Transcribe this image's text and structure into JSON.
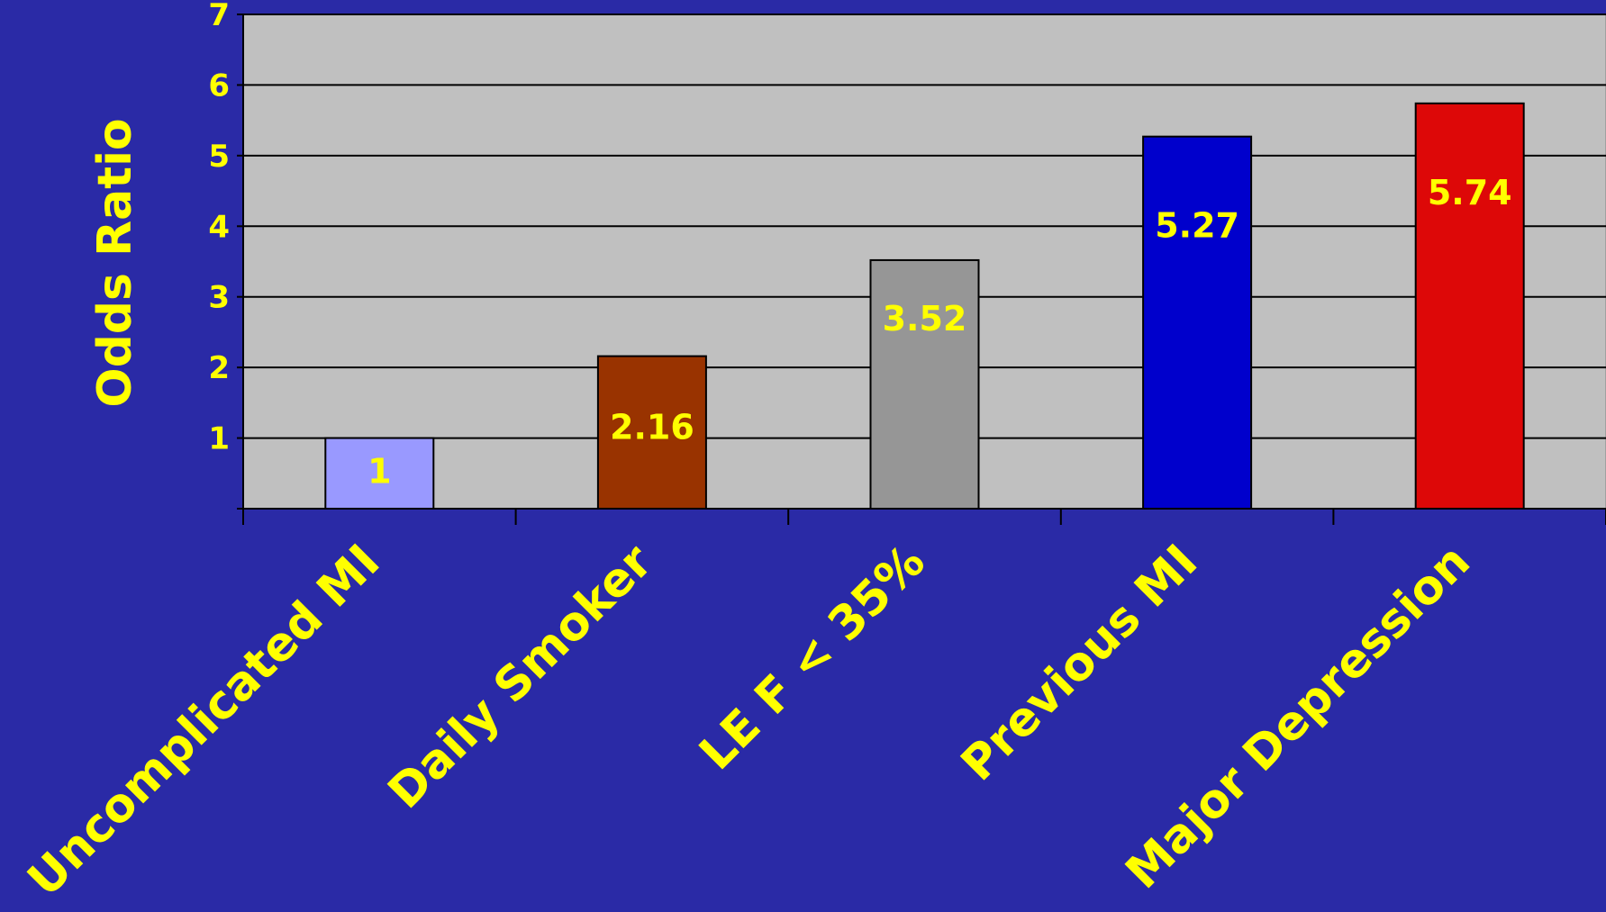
{
  "chart_data": {
    "type": "bar",
    "title": "",
    "xlabel": "",
    "ylabel": "Odds Ratio",
    "ylim": [
      0,
      7
    ],
    "yticks": [
      "1",
      "2",
      "3",
      "4",
      "5",
      "6",
      "7"
    ],
    "categories": [
      "Uncomplicated MI",
      "Daily Smoker",
      "LE F < 35%",
      "Previous MI",
      "Major Depression"
    ],
    "values": [
      1,
      2.16,
      3.52,
      5.27,
      5.74
    ],
    "data_labels": [
      "1",
      "2.16",
      "3.52",
      "5.27",
      "5.74"
    ],
    "bar_colors": [
      "#9999ff",
      "#993300",
      "#969696",
      "#0000cc",
      "#dd0808"
    ],
    "grid": true,
    "legend": "none"
  },
  "colors": {
    "background": "#2a2aa6",
    "plot_area": "#c0c0c0",
    "text": "#ffff00",
    "gridline": "#000000"
  }
}
